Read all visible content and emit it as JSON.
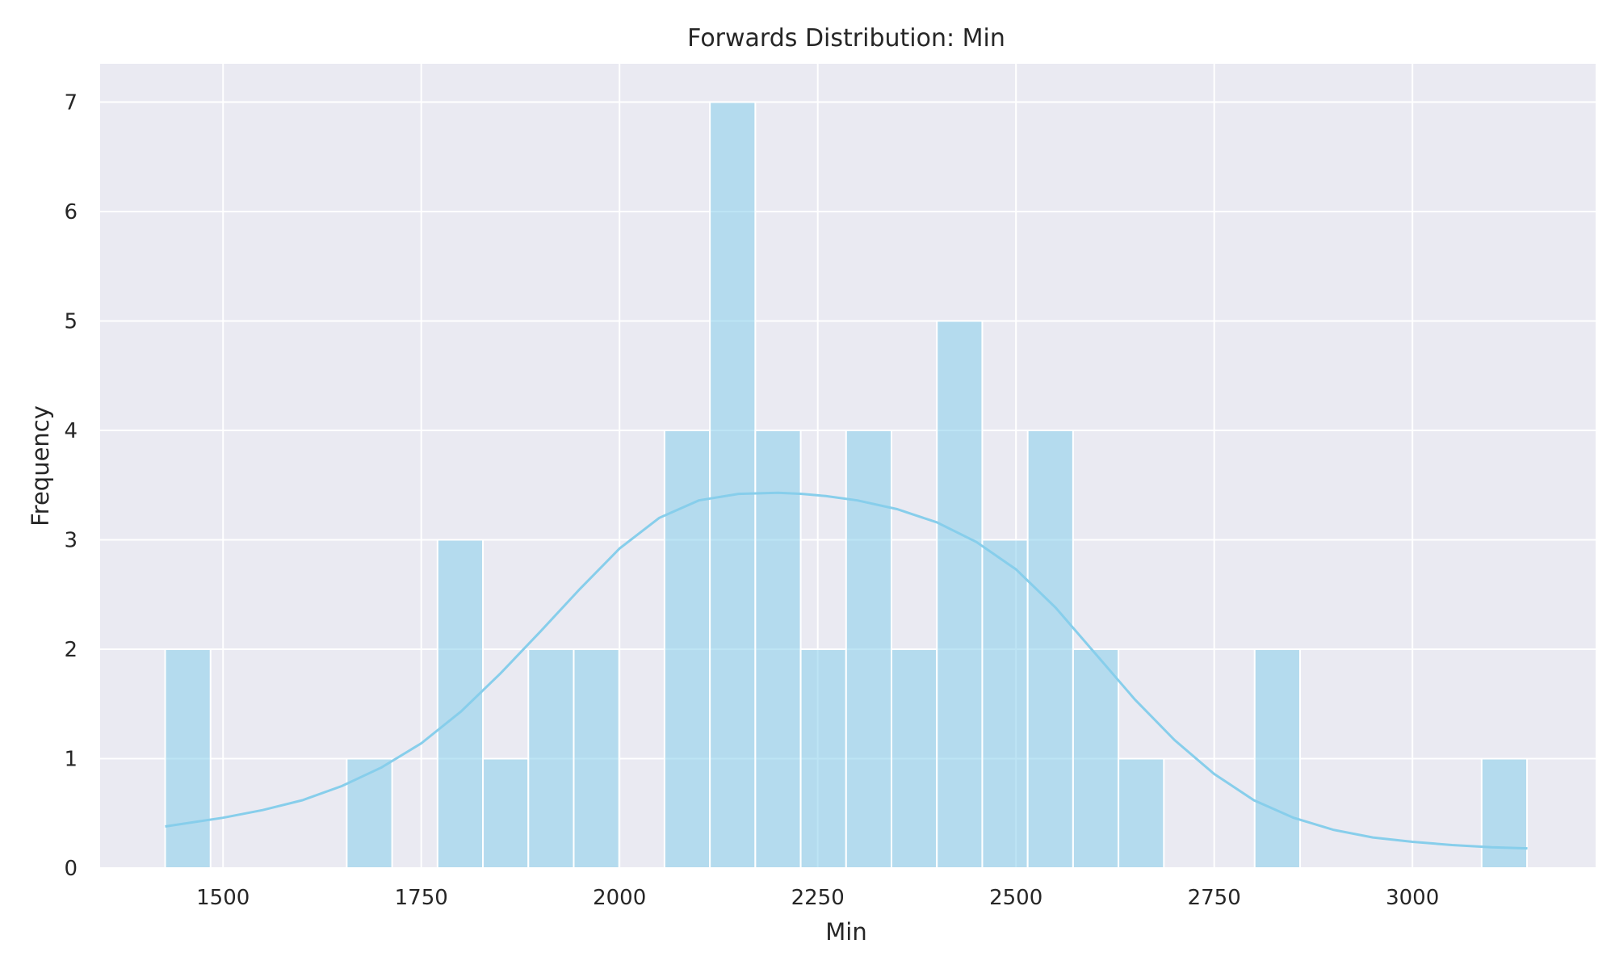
{
  "chart_data": {
    "type": "bar",
    "title": "Forwards Distribution: Min",
    "xlabel": "Min",
    "ylabel": "Frequency",
    "xlim": [
      1345,
      3231
    ],
    "ylim": [
      0,
      7.35
    ],
    "xticks": [
      1500,
      1750,
      2000,
      2250,
      2500,
      2750,
      3000
    ],
    "yticks": [
      0,
      1,
      2,
      3,
      4,
      5,
      6,
      7
    ],
    "grid": true,
    "bin_width": 57.25,
    "bins": [
      {
        "left": 1427,
        "count": 2
      },
      {
        "left": 1484.25,
        "count": 0
      },
      {
        "left": 1541.5,
        "count": 0
      },
      {
        "left": 1598.75,
        "count": 0
      },
      {
        "left": 1656,
        "count": 1
      },
      {
        "left": 1713.25,
        "count": 0
      },
      {
        "left": 1770.5,
        "count": 3
      },
      {
        "left": 1827.75,
        "count": 1
      },
      {
        "left": 1885,
        "count": 2
      },
      {
        "left": 1942.25,
        "count": 2
      },
      {
        "left": 1999.5,
        "count": 0
      },
      {
        "left": 2056.75,
        "count": 4
      },
      {
        "left": 2114,
        "count": 7
      },
      {
        "left": 2171.25,
        "count": 4
      },
      {
        "left": 2228.5,
        "count": 2
      },
      {
        "left": 2285.75,
        "count": 4
      },
      {
        "left": 2343,
        "count": 2
      },
      {
        "left": 2400.25,
        "count": 5
      },
      {
        "left": 2457.5,
        "count": 3
      },
      {
        "left": 2514.75,
        "count": 4
      },
      {
        "left": 2572,
        "count": 2
      },
      {
        "left": 2629.25,
        "count": 1
      },
      {
        "left": 2686.5,
        "count": 0
      },
      {
        "left": 2743.75,
        "count": 0
      },
      {
        "left": 2801,
        "count": 2
      },
      {
        "left": 2858.25,
        "count": 0
      },
      {
        "left": 2915.5,
        "count": 0
      },
      {
        "left": 2972.75,
        "count": 0
      },
      {
        "left": 3030,
        "count": 0
      },
      {
        "left": 3087.25,
        "count": 1
      }
    ],
    "kde": {
      "x": [
        1427,
        1500,
        1550,
        1600,
        1650,
        1700,
        1750,
        1800,
        1850,
        1900,
        1950,
        2000,
        2050,
        2100,
        2150,
        2200,
        2230,
        2260,
        2300,
        2350,
        2400,
        2450,
        2500,
        2550,
        2600,
        2650,
        2700,
        2750,
        2800,
        2850,
        2900,
        2950,
        3000,
        3050,
        3100,
        3145
      ],
      "y": [
        0.38,
        0.46,
        0.53,
        0.62,
        0.75,
        0.92,
        1.14,
        1.43,
        1.78,
        2.16,
        2.55,
        2.92,
        3.2,
        3.36,
        3.42,
        3.43,
        3.42,
        3.4,
        3.36,
        3.28,
        3.16,
        2.98,
        2.73,
        2.38,
        1.96,
        1.54,
        1.17,
        0.86,
        0.62,
        0.46,
        0.35,
        0.28,
        0.24,
        0.21,
        0.19,
        0.18
      ]
    },
    "colors": {
      "bar_fill": "#87ceeb",
      "bar_edge": "#ffffff",
      "kde_line": "#87ceeb",
      "plot_background": "#eaeaf2",
      "grid": "#ffffff",
      "text": "#262626"
    }
  }
}
